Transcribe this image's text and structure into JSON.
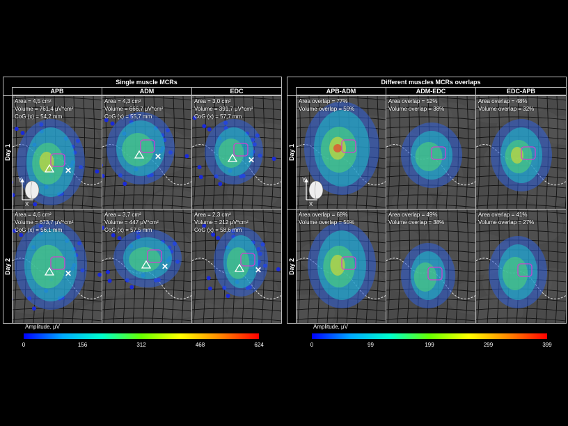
{
  "left": {
    "title": "Single muscle MCRs",
    "columns": [
      "APB",
      "ADM",
      "EDC"
    ],
    "rows": [
      "Day 1",
      "Day 2"
    ],
    "cells": [
      [
        "Area = 4,5 cm²",
        "Volume = 761,4 μV*cm²",
        "CoG (x) = 54,2 mm"
      ],
      [
        "Area = 4,3 cm²",
        "Volume = 666,7 μV*cm²",
        "CoG (x) = 55,7 mm"
      ],
      [
        "Area = 3,0 cm²",
        "Volume = 391,7 μV*cm²",
        "CoG (x) = 57,7 mm"
      ],
      [
        "Area = 4,6 cm²",
        "Volume = 673,7 μV*cm²",
        "CoG (x) = 56,1 mm"
      ],
      [
        "Area = 3,7 cm²",
        "Volume = 447 μV*cm²",
        "CoG (x) = 57,5 mm"
      ],
      [
        "Area = 2,3 cm²",
        "Volume = 212 μV*cm²",
        "CoG (x) = 58,6 mm"
      ]
    ],
    "colorbar": {
      "label": "Amplitude, μV",
      "ticks": [
        "0",
        "156",
        "312",
        "468",
        "624"
      ]
    }
  },
  "right": {
    "title": "Different muscles MCRs overlaps",
    "columns": [
      "APB-ADM",
      "ADM-EDC",
      "EDC-APB"
    ],
    "rows": [
      "Day 1",
      "Day 2"
    ],
    "cells": [
      [
        "Area overlap = 77%",
        "Volume overlap = 59%"
      ],
      [
        "Area overlap = 52%",
        "Volume overlap = 38%"
      ],
      [
        "Area overlap = 48%",
        "Volume overlap = 32%"
      ],
      [
        "Area overlap = 68%",
        "Volume overlap = 55%"
      ],
      [
        "Area overlap = 49%",
        "Volume overlap = 38%"
      ],
      [
        "Area overlap = 41%",
        "Volume overlap = 27%"
      ]
    ],
    "colorbar": {
      "label": "Amplitude, μV",
      "ticks": [
        "0",
        "99",
        "199",
        "299",
        "399"
      ]
    }
  },
  "axis": {
    "y": "Y",
    "x": "X"
  },
  "colors": {
    "colormap": [
      "#0000ff",
      "#00aaff",
      "#00ffcc",
      "#66ff00",
      "#ffff00",
      "#ff8800",
      "#ff0000"
    ],
    "roi": "#d040d0"
  }
}
